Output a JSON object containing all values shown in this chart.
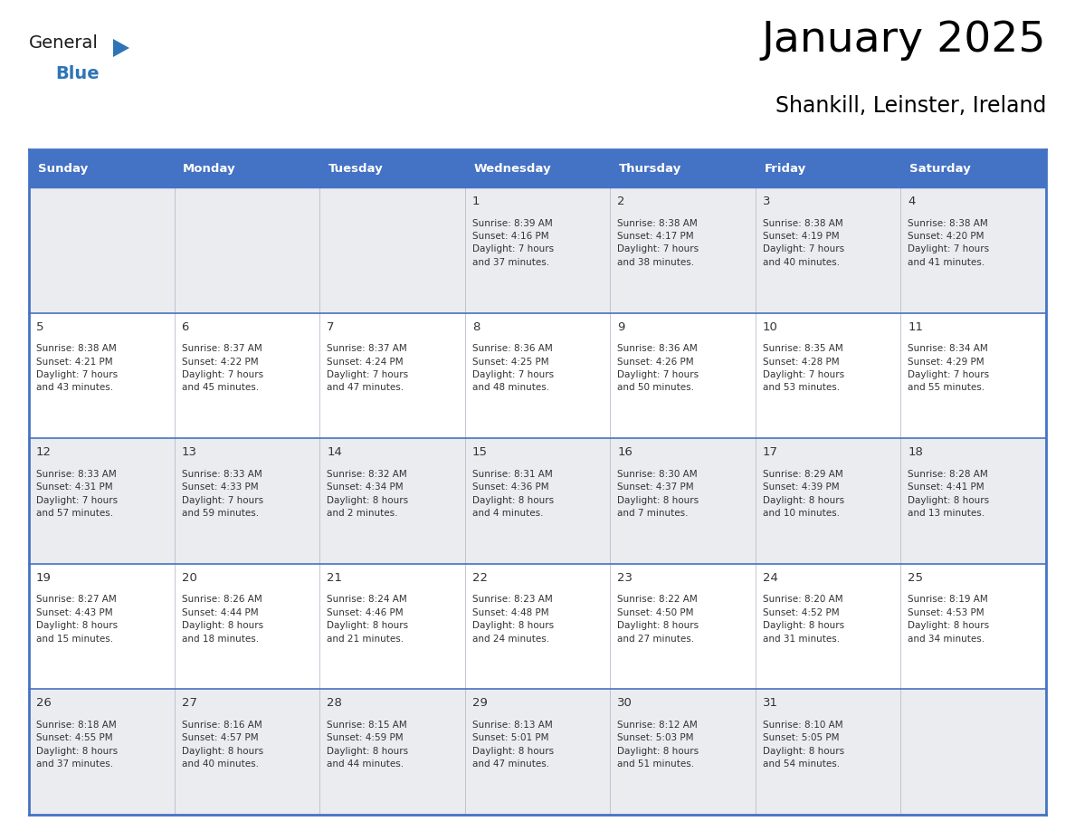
{
  "title": "January 2025",
  "subtitle": "Shankill, Leinster, Ireland",
  "header_color": "#4472C4",
  "header_text_color": "#FFFFFF",
  "cell_bg_white": "#FFFFFF",
  "cell_bg_gray": "#EAECF0",
  "border_color": "#4472C4",
  "text_color": "#333333",
  "day_number_color": "#333333",
  "days_of_week": [
    "Sunday",
    "Monday",
    "Tuesday",
    "Wednesday",
    "Thursday",
    "Friday",
    "Saturday"
  ],
  "calendar_data": [
    [
      {
        "day": null,
        "info": null
      },
      {
        "day": null,
        "info": null
      },
      {
        "day": null,
        "info": null
      },
      {
        "day": 1,
        "info": "Sunrise: 8:39 AM\nSunset: 4:16 PM\nDaylight: 7 hours\nand 37 minutes."
      },
      {
        "day": 2,
        "info": "Sunrise: 8:38 AM\nSunset: 4:17 PM\nDaylight: 7 hours\nand 38 minutes."
      },
      {
        "day": 3,
        "info": "Sunrise: 8:38 AM\nSunset: 4:19 PM\nDaylight: 7 hours\nand 40 minutes."
      },
      {
        "day": 4,
        "info": "Sunrise: 8:38 AM\nSunset: 4:20 PM\nDaylight: 7 hours\nand 41 minutes."
      }
    ],
    [
      {
        "day": 5,
        "info": "Sunrise: 8:38 AM\nSunset: 4:21 PM\nDaylight: 7 hours\nand 43 minutes."
      },
      {
        "day": 6,
        "info": "Sunrise: 8:37 AM\nSunset: 4:22 PM\nDaylight: 7 hours\nand 45 minutes."
      },
      {
        "day": 7,
        "info": "Sunrise: 8:37 AM\nSunset: 4:24 PM\nDaylight: 7 hours\nand 47 minutes."
      },
      {
        "day": 8,
        "info": "Sunrise: 8:36 AM\nSunset: 4:25 PM\nDaylight: 7 hours\nand 48 minutes."
      },
      {
        "day": 9,
        "info": "Sunrise: 8:36 AM\nSunset: 4:26 PM\nDaylight: 7 hours\nand 50 minutes."
      },
      {
        "day": 10,
        "info": "Sunrise: 8:35 AM\nSunset: 4:28 PM\nDaylight: 7 hours\nand 53 minutes."
      },
      {
        "day": 11,
        "info": "Sunrise: 8:34 AM\nSunset: 4:29 PM\nDaylight: 7 hours\nand 55 minutes."
      }
    ],
    [
      {
        "day": 12,
        "info": "Sunrise: 8:33 AM\nSunset: 4:31 PM\nDaylight: 7 hours\nand 57 minutes."
      },
      {
        "day": 13,
        "info": "Sunrise: 8:33 AM\nSunset: 4:33 PM\nDaylight: 7 hours\nand 59 minutes."
      },
      {
        "day": 14,
        "info": "Sunrise: 8:32 AM\nSunset: 4:34 PM\nDaylight: 8 hours\nand 2 minutes."
      },
      {
        "day": 15,
        "info": "Sunrise: 8:31 AM\nSunset: 4:36 PM\nDaylight: 8 hours\nand 4 minutes."
      },
      {
        "day": 16,
        "info": "Sunrise: 8:30 AM\nSunset: 4:37 PM\nDaylight: 8 hours\nand 7 minutes."
      },
      {
        "day": 17,
        "info": "Sunrise: 8:29 AM\nSunset: 4:39 PM\nDaylight: 8 hours\nand 10 minutes."
      },
      {
        "day": 18,
        "info": "Sunrise: 8:28 AM\nSunset: 4:41 PM\nDaylight: 8 hours\nand 13 minutes."
      }
    ],
    [
      {
        "day": 19,
        "info": "Sunrise: 8:27 AM\nSunset: 4:43 PM\nDaylight: 8 hours\nand 15 minutes."
      },
      {
        "day": 20,
        "info": "Sunrise: 8:26 AM\nSunset: 4:44 PM\nDaylight: 8 hours\nand 18 minutes."
      },
      {
        "day": 21,
        "info": "Sunrise: 8:24 AM\nSunset: 4:46 PM\nDaylight: 8 hours\nand 21 minutes."
      },
      {
        "day": 22,
        "info": "Sunrise: 8:23 AM\nSunset: 4:48 PM\nDaylight: 8 hours\nand 24 minutes."
      },
      {
        "day": 23,
        "info": "Sunrise: 8:22 AM\nSunset: 4:50 PM\nDaylight: 8 hours\nand 27 minutes."
      },
      {
        "day": 24,
        "info": "Sunrise: 8:20 AM\nSunset: 4:52 PM\nDaylight: 8 hours\nand 31 minutes."
      },
      {
        "day": 25,
        "info": "Sunrise: 8:19 AM\nSunset: 4:53 PM\nDaylight: 8 hours\nand 34 minutes."
      }
    ],
    [
      {
        "day": 26,
        "info": "Sunrise: 8:18 AM\nSunset: 4:55 PM\nDaylight: 8 hours\nand 37 minutes."
      },
      {
        "day": 27,
        "info": "Sunrise: 8:16 AM\nSunset: 4:57 PM\nDaylight: 8 hours\nand 40 minutes."
      },
      {
        "day": 28,
        "info": "Sunrise: 8:15 AM\nSunset: 4:59 PM\nDaylight: 8 hours\nand 44 minutes."
      },
      {
        "day": 29,
        "info": "Sunrise: 8:13 AM\nSunset: 5:01 PM\nDaylight: 8 hours\nand 47 minutes."
      },
      {
        "day": 30,
        "info": "Sunrise: 8:12 AM\nSunset: 5:03 PM\nDaylight: 8 hours\nand 51 minutes."
      },
      {
        "day": 31,
        "info": "Sunrise: 8:10 AM\nSunset: 5:05 PM\nDaylight: 8 hours\nand 54 minutes."
      },
      {
        "day": null,
        "info": null
      }
    ]
  ],
  "logo_text_general": "General",
  "logo_text_blue": "Blue",
  "logo_color_general": "#1a1a1a",
  "logo_color_blue": "#2E75B6",
  "logo_triangle_color": "#2E75B6",
  "row_bg_colors": [
    "#EAECF0",
    "#FFFFFF",
    "#EAECF0",
    "#FFFFFF",
    "#EAECF0"
  ]
}
